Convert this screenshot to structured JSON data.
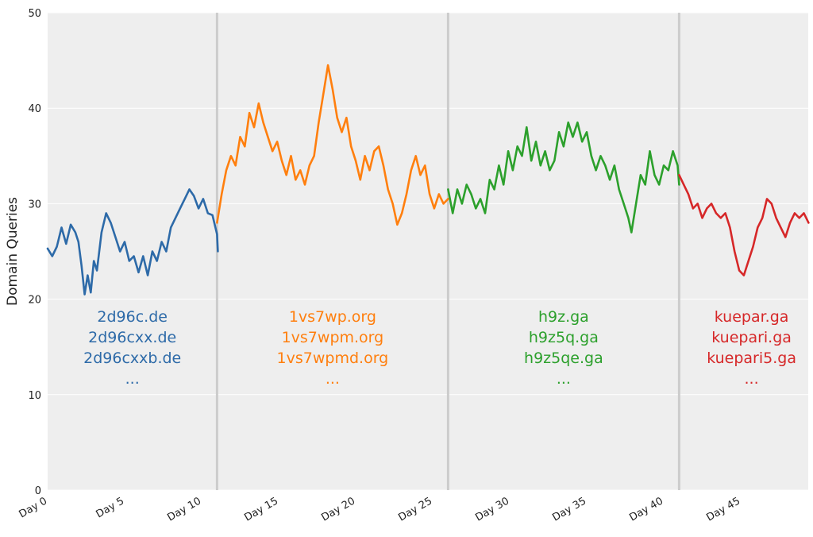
{
  "chart_data": {
    "type": "line",
    "title": "",
    "xlabel": "",
    "ylabel": "Domain Queries",
    "xlim": [
      0,
      50
    ],
    "ylim": [
      0,
      50
    ],
    "grid": true,
    "legend": "none",
    "background": "#eeeeee",
    "y_ticks": [
      "0",
      "10",
      "20",
      "30",
      "40",
      "50"
    ],
    "x_ticks": [
      {
        "value": 0,
        "label": "Day 0"
      },
      {
        "value": 5,
        "label": "Day 5"
      },
      {
        "value": 10,
        "label": "Day 10"
      },
      {
        "value": 15,
        "label": "Day 15"
      },
      {
        "value": 20,
        "label": "Day 20"
      },
      {
        "value": 25,
        "label": "Day 25"
      },
      {
        "value": 30,
        "label": "Day 30"
      },
      {
        "value": 35,
        "label": "Day 35"
      },
      {
        "value": 40,
        "label": "Day 40"
      },
      {
        "value": 45,
        "label": "Day 45"
      }
    ],
    "dividers": [
      11,
      26,
      41
    ],
    "series": [
      {
        "color": "#2d6aa8",
        "points": [
          [
            0.0,
            25.3
          ],
          [
            0.3,
            24.5
          ],
          [
            0.6,
            25.5
          ],
          [
            0.9,
            27.5
          ],
          [
            1.2,
            25.8
          ],
          [
            1.5,
            27.8
          ],
          [
            1.8,
            27.0
          ],
          [
            2.0,
            26.0
          ],
          [
            2.2,
            23.5
          ],
          [
            2.4,
            20.5
          ],
          [
            2.6,
            22.5
          ],
          [
            2.8,
            20.7
          ],
          [
            3.0,
            24.0
          ],
          [
            3.2,
            23.0
          ],
          [
            3.5,
            27.0
          ],
          [
            3.8,
            29.0
          ],
          [
            4.1,
            28.0
          ],
          [
            4.4,
            26.5
          ],
          [
            4.7,
            25.0
          ],
          [
            5.0,
            26.0
          ],
          [
            5.3,
            24.0
          ],
          [
            5.6,
            24.5
          ],
          [
            5.9,
            22.8
          ],
          [
            6.2,
            24.5
          ],
          [
            6.5,
            22.5
          ],
          [
            6.8,
            25.0
          ],
          [
            7.1,
            24.0
          ],
          [
            7.4,
            26.0
          ],
          [
            7.7,
            25.0
          ],
          [
            8.0,
            27.5
          ],
          [
            8.3,
            28.5
          ],
          [
            8.6,
            29.5
          ],
          [
            8.9,
            30.5
          ],
          [
            9.2,
            31.5
          ],
          [
            9.5,
            30.8
          ],
          [
            9.8,
            29.5
          ],
          [
            10.1,
            30.5
          ],
          [
            10.4,
            29.0
          ],
          [
            10.7,
            28.8
          ],
          [
            11.0,
            26.8
          ],
          [
            11.05,
            25.0
          ]
        ]
      },
      {
        "color": "#ff7f0e",
        "points": [
          [
            11.0,
            28.0
          ],
          [
            11.3,
            31.0
          ],
          [
            11.6,
            33.5
          ],
          [
            11.9,
            35.0
          ],
          [
            12.2,
            34.0
          ],
          [
            12.5,
            37.0
          ],
          [
            12.8,
            36.0
          ],
          [
            13.1,
            39.5
          ],
          [
            13.4,
            38.0
          ],
          [
            13.7,
            40.5
          ],
          [
            14.0,
            38.5
          ],
          [
            14.3,
            37.0
          ],
          [
            14.6,
            35.5
          ],
          [
            14.9,
            36.5
          ],
          [
            15.2,
            34.5
          ],
          [
            15.5,
            33.0
          ],
          [
            15.8,
            35.0
          ],
          [
            16.1,
            32.5
          ],
          [
            16.4,
            33.5
          ],
          [
            16.7,
            32.0
          ],
          [
            17.0,
            34.0
          ],
          [
            17.3,
            35.0
          ],
          [
            17.6,
            38.5
          ],
          [
            17.9,
            41.5
          ],
          [
            18.2,
            44.5
          ],
          [
            18.5,
            42.0
          ],
          [
            18.8,
            39.0
          ],
          [
            19.1,
            37.5
          ],
          [
            19.4,
            39.0
          ],
          [
            19.7,
            36.0
          ],
          [
            20.0,
            34.5
          ],
          [
            20.3,
            32.5
          ],
          [
            20.6,
            35.0
          ],
          [
            20.9,
            33.5
          ],
          [
            21.2,
            35.5
          ],
          [
            21.5,
            36.0
          ],
          [
            21.8,
            34.0
          ],
          [
            22.1,
            31.5
          ],
          [
            22.4,
            30.0
          ],
          [
            22.7,
            27.8
          ],
          [
            23.0,
            29.0
          ],
          [
            23.3,
            31.0
          ],
          [
            23.6,
            33.5
          ],
          [
            23.9,
            35.0
          ],
          [
            24.2,
            33.0
          ],
          [
            24.5,
            34.0
          ],
          [
            24.8,
            31.0
          ],
          [
            25.1,
            29.5
          ],
          [
            25.4,
            31.0
          ],
          [
            25.7,
            30.0
          ],
          [
            26.0,
            30.5
          ]
        ]
      },
      {
        "color": "#2ca02c",
        "points": [
          [
            26.0,
            31.5
          ],
          [
            26.3,
            29.0
          ],
          [
            26.6,
            31.5
          ],
          [
            26.9,
            30.0
          ],
          [
            27.2,
            32.0
          ],
          [
            27.5,
            31.0
          ],
          [
            27.8,
            29.5
          ],
          [
            28.1,
            30.5
          ],
          [
            28.4,
            29.0
          ],
          [
            28.7,
            32.5
          ],
          [
            29.0,
            31.5
          ],
          [
            29.3,
            34.0
          ],
          [
            29.6,
            32.0
          ],
          [
            29.9,
            35.5
          ],
          [
            30.2,
            33.5
          ],
          [
            30.5,
            36.0
          ],
          [
            30.8,
            35.0
          ],
          [
            31.1,
            38.0
          ],
          [
            31.4,
            34.5
          ],
          [
            31.7,
            36.5
          ],
          [
            32.0,
            34.0
          ],
          [
            32.3,
            35.5
          ],
          [
            32.6,
            33.5
          ],
          [
            32.9,
            34.5
          ],
          [
            33.2,
            37.5
          ],
          [
            33.5,
            36.0
          ],
          [
            33.8,
            38.5
          ],
          [
            34.1,
            37.0
          ],
          [
            34.4,
            38.5
          ],
          [
            34.7,
            36.5
          ],
          [
            35.0,
            37.5
          ],
          [
            35.3,
            35.0
          ],
          [
            35.6,
            33.5
          ],
          [
            35.9,
            35.0
          ],
          [
            36.2,
            34.0
          ],
          [
            36.5,
            32.5
          ],
          [
            36.8,
            34.0
          ],
          [
            37.1,
            31.5
          ],
          [
            37.4,
            30.0
          ],
          [
            37.7,
            28.5
          ],
          [
            37.9,
            27.0
          ],
          [
            38.2,
            30.0
          ],
          [
            38.5,
            33.0
          ],
          [
            38.8,
            32.0
          ],
          [
            39.1,
            35.5
          ],
          [
            39.4,
            33.0
          ],
          [
            39.7,
            32.0
          ],
          [
            40.0,
            34.0
          ],
          [
            40.3,
            33.5
          ],
          [
            40.6,
            35.5
          ],
          [
            40.9,
            34.0
          ],
          [
            41.0,
            32.0
          ]
        ]
      },
      {
        "color": "#d62728",
        "points": [
          [
            41.0,
            33.0
          ],
          [
            41.3,
            32.0
          ],
          [
            41.6,
            31.0
          ],
          [
            41.9,
            29.5
          ],
          [
            42.2,
            30.0
          ],
          [
            42.5,
            28.5
          ],
          [
            42.8,
            29.5
          ],
          [
            43.1,
            30.0
          ],
          [
            43.4,
            29.0
          ],
          [
            43.7,
            28.5
          ],
          [
            44.0,
            29.0
          ],
          [
            44.3,
            27.5
          ],
          [
            44.6,
            25.0
          ],
          [
            44.9,
            23.0
          ],
          [
            45.2,
            22.5
          ],
          [
            45.5,
            24.0
          ],
          [
            45.8,
            25.5
          ],
          [
            46.1,
            27.5
          ],
          [
            46.4,
            28.5
          ],
          [
            46.7,
            30.5
          ],
          [
            47.0,
            30.0
          ],
          [
            47.3,
            28.5
          ],
          [
            47.6,
            27.5
          ],
          [
            47.9,
            26.5
          ],
          [
            48.2,
            28.0
          ],
          [
            48.5,
            29.0
          ],
          [
            48.8,
            28.5
          ],
          [
            49.1,
            29.0
          ],
          [
            49.4,
            28.0
          ]
        ]
      }
    ],
    "annotations": [
      {
        "color": "#2d6aa8",
        "x": 5.5,
        "lines": [
          "2d96c.de",
          "2d96cxx.de",
          "2d96cxxb.de",
          "..."
        ]
      },
      {
        "color": "#ff7f0e",
        "x": 18.5,
        "lines": [
          "1vs7wp.org",
          "1vs7wpm.org",
          "1vs7wpmd.org",
          "..."
        ]
      },
      {
        "color": "#2ca02c",
        "x": 33.5,
        "lines": [
          "h9z.ga",
          "h9z5q.ga",
          "h9z5qe.ga",
          "..."
        ]
      },
      {
        "color": "#d62728",
        "x": 45.7,
        "lines": [
          "kuepar.ga",
          "kuepari.ga",
          "kuepari5.ga",
          "..."
        ]
      }
    ]
  }
}
